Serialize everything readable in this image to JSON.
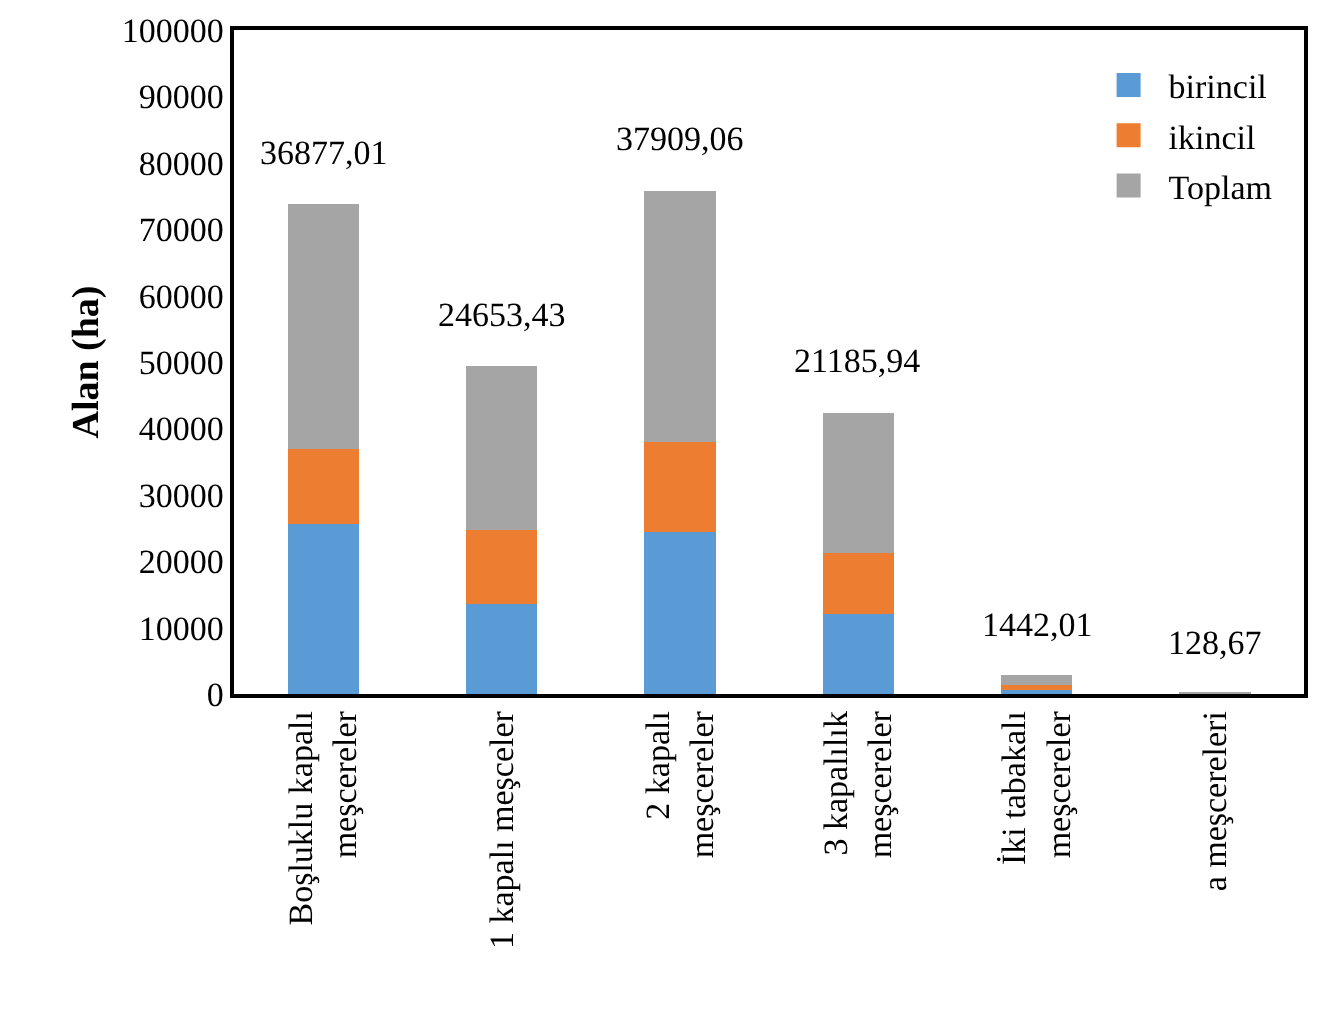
{
  "chart_data": {
    "type": "bar",
    "stacked": true,
    "ylabel": "Alan (ha)",
    "categories": [
      "Boşluklu kapalı meşcereler",
      "1 kapalı meşceler",
      "2 kapalı meşcereler",
      "3 kapalılık meşcereler",
      "İki tabakalı meşcereler",
      "a meşcereleri"
    ],
    "series": [
      {
        "name": "birincil",
        "color": "#5b9bd5",
        "values": [
          25600,
          13600,
          24400,
          12000,
          800,
          null
        ]
      },
      {
        "name": "ikincil",
        "color": "#ed7d31",
        "values": [
          11300,
          11100,
          13500,
          9200,
          600,
          null
        ]
      },
      {
        "name": "Toplam",
        "color": "#a5a5a5",
        "values": [
          36877.01,
          24653.43,
          37909.06,
          21185.94,
          1442.01,
          128.67
        ],
        "value_labels": [
          "36877,01",
          "24653,43",
          "37909,06",
          "21185,94",
          "1442,01",
          "128,67"
        ]
      }
    ],
    "ylim": [
      0,
      100000
    ],
    "yticks": [
      0,
      10000,
      20000,
      30000,
      40000,
      50000,
      60000,
      70000,
      80000,
      90000,
      100000
    ],
    "grid": false,
    "legend": "top right"
  }
}
